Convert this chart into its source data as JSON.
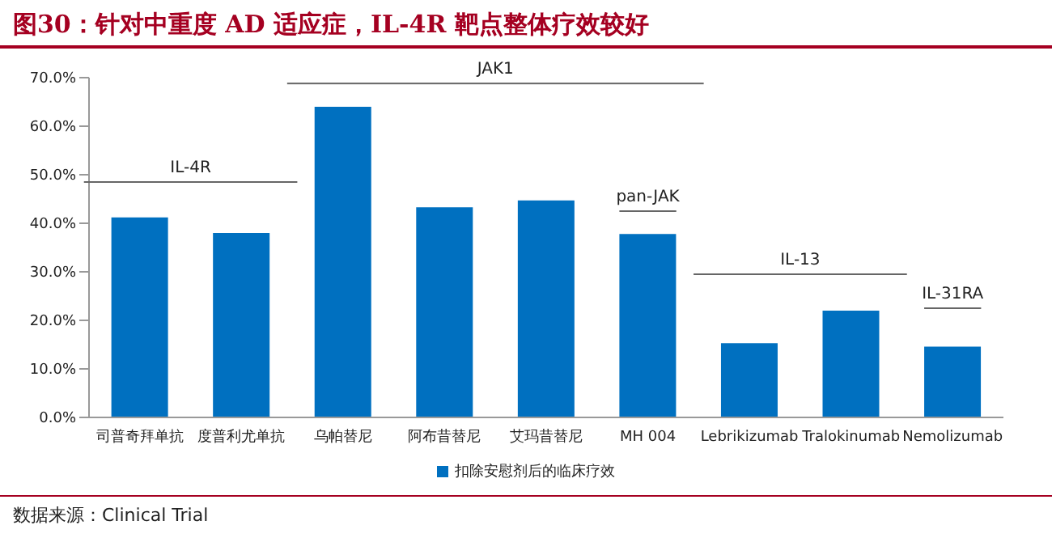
{
  "chart_data": {
    "type": "bar",
    "title": "图30：针对中重度 AD 适应症，IL-4R 靶点整体疗效较好",
    "categories": [
      "司普奇拜单抗",
      "度普利尤单抗",
      "乌帕替尼",
      "阿布昔替尼",
      "艾玛昔替尼",
      "MH 004",
      "Lebrikizumab",
      "Tralokinumab",
      "Nemolizumab"
    ],
    "series": [
      {
        "name": "扣除安慰剂后的临床疗效",
        "color": "#0070c0",
        "values": [
          41.2,
          38.0,
          64.0,
          43.3,
          44.7,
          37.8,
          15.3,
          22.0,
          14.6
        ]
      }
    ],
    "ylim": [
      0,
      70
    ],
    "yticks": [
      {
        "value": 0,
        "label": "0.0%"
      },
      {
        "value": 10,
        "label": "10.0%"
      },
      {
        "value": 20,
        "label": "20.0%"
      },
      {
        "value": 30,
        "label": "30.0%"
      },
      {
        "value": 40,
        "label": "40.0%"
      },
      {
        "value": 50,
        "label": "50.0%"
      },
      {
        "value": 60,
        "label": "60.0%"
      },
      {
        "value": 70,
        "label": "70.0%"
      }
    ],
    "grid": false,
    "legend": "bottom",
    "annotations": [
      "IL-4R",
      "JAK1",
      "pan-JAK",
      "IL-13",
      "IL-31RA",
      "数据来源：Clinical Trial"
    ]
  }
}
